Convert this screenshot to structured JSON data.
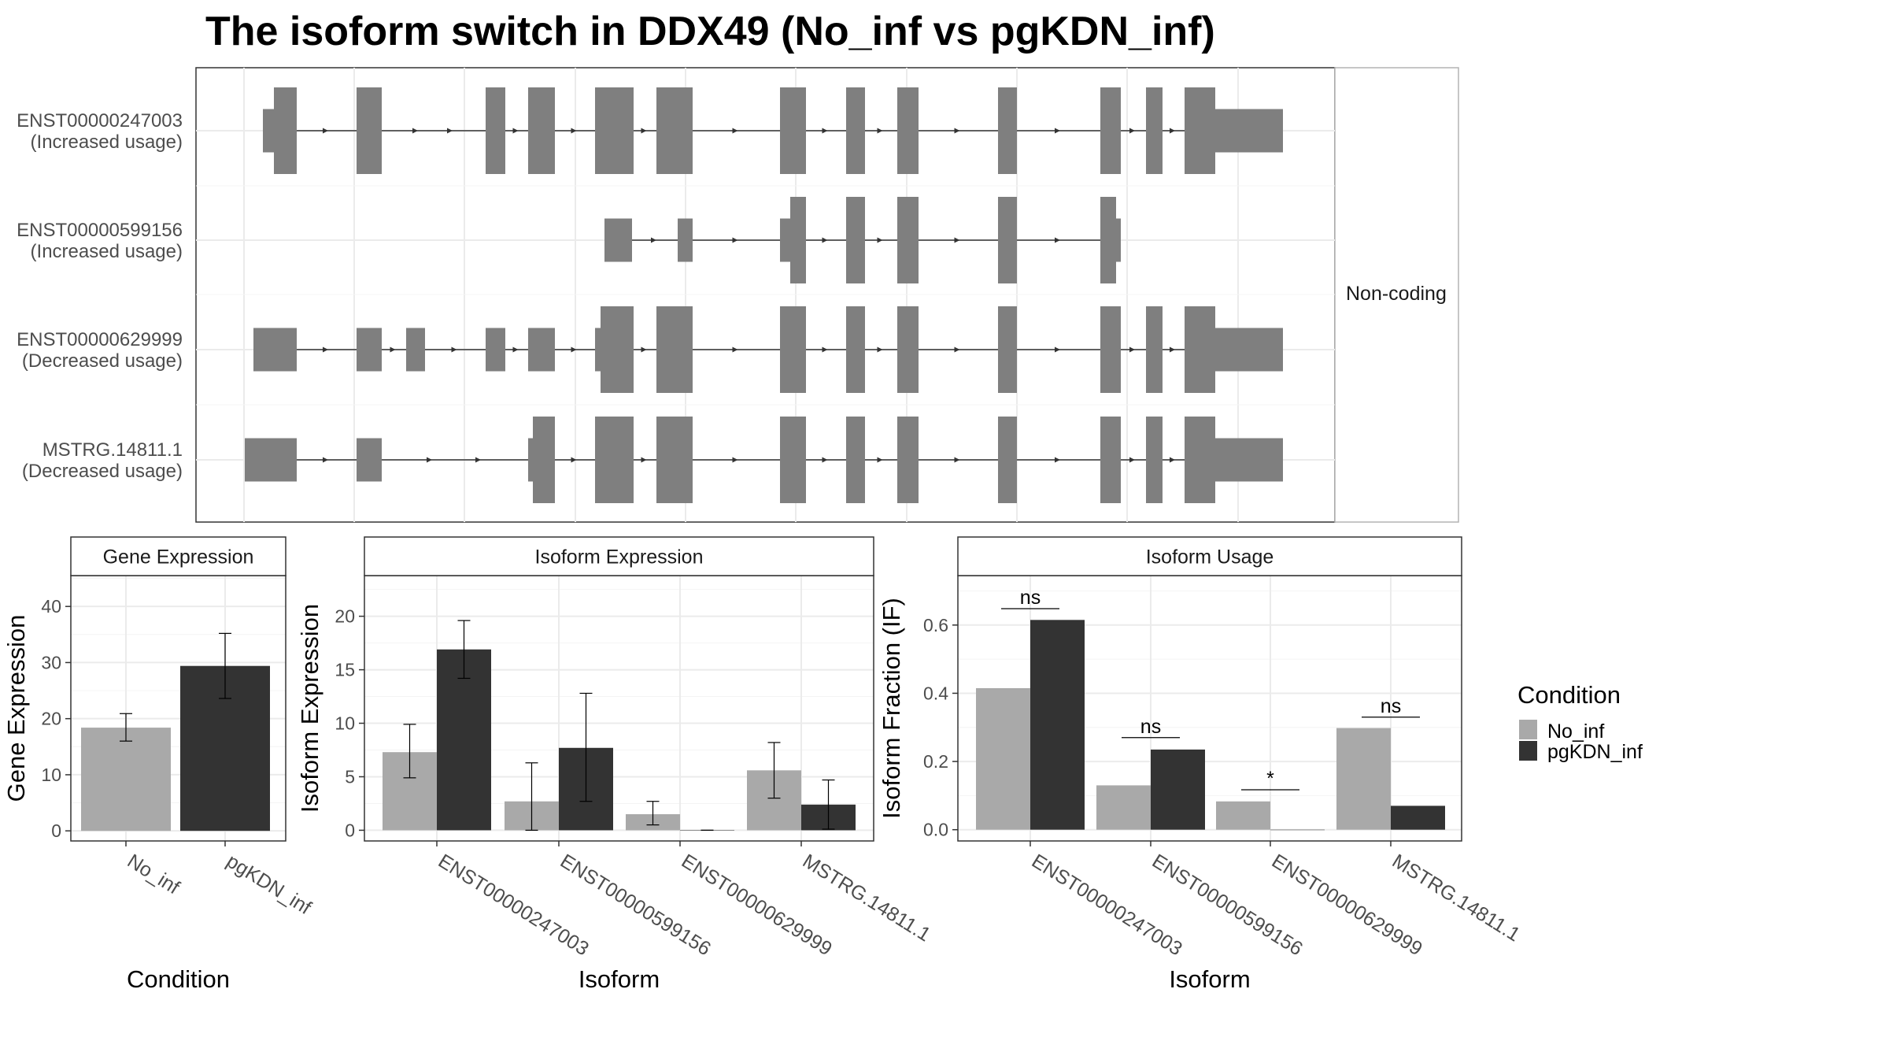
{
  "title": "The isoform switch in DDX49 (No_inf vs pgKDN_inf)",
  "structure_panel": {
    "strip_label": "Non-coding",
    "gap_labels": {
      "fill": "#7f7f7f"
    },
    "rows": [
      {
        "id": "ENST00000247003",
        "note": "(Increased usage)",
        "span": [
          334,
          1630
        ],
        "exons": [
          {
            "start": 334,
            "end": 348,
            "kind": "utr"
          },
          {
            "start": 348,
            "end": 377,
            "kind": "cds"
          },
          {
            "start": 453,
            "end": 485,
            "kind": "cds"
          },
          {
            "start": 617,
            "end": 642,
            "kind": "cds"
          },
          {
            "start": 671,
            "end": 705,
            "kind": "cds"
          },
          {
            "start": 756,
            "end": 805,
            "kind": "cds"
          },
          {
            "start": 834,
            "end": 880,
            "kind": "cds"
          },
          {
            "start": 991,
            "end": 1024,
            "kind": "cds"
          },
          {
            "start": 1075,
            "end": 1099,
            "kind": "cds"
          },
          {
            "start": 1140,
            "end": 1167,
            "kind": "cds"
          },
          {
            "start": 1268,
            "end": 1292,
            "kind": "cds"
          },
          {
            "start": 1398,
            "end": 1424,
            "kind": "cds"
          },
          {
            "start": 1456,
            "end": 1477,
            "kind": "cds"
          },
          {
            "start": 1505,
            "end": 1544,
            "kind": "cds"
          },
          {
            "start": 1544,
            "end": 1630,
            "kind": "utr"
          }
        ]
      },
      {
        "id": "ENST00000599156",
        "note": "(Increased usage)",
        "span": [
          768,
          1424
        ],
        "exons": [
          {
            "start": 768,
            "end": 803,
            "kind": "utr"
          },
          {
            "start": 861,
            "end": 880,
            "kind": "utr"
          },
          {
            "start": 991,
            "end": 1004,
            "kind": "utr"
          },
          {
            "start": 1004,
            "end": 1024,
            "kind": "cds"
          },
          {
            "start": 1075,
            "end": 1099,
            "kind": "cds"
          },
          {
            "start": 1140,
            "end": 1167,
            "kind": "cds"
          },
          {
            "start": 1268,
            "end": 1292,
            "kind": "cds"
          },
          {
            "start": 1398,
            "end": 1418,
            "kind": "cds"
          },
          {
            "start": 1418,
            "end": 1424,
            "kind": "utr"
          }
        ]
      },
      {
        "id": "ENST00000629999",
        "note": "(Decreased usage)",
        "span": [
          322,
          1630
        ],
        "exons": [
          {
            "start": 322,
            "end": 377,
            "kind": "utr"
          },
          {
            "start": 453,
            "end": 485,
            "kind": "utr"
          },
          {
            "start": 516,
            "end": 540,
            "kind": "utr"
          },
          {
            "start": 617,
            "end": 642,
            "kind": "utr"
          },
          {
            "start": 671,
            "end": 705,
            "kind": "utr"
          },
          {
            "start": 756,
            "end": 763,
            "kind": "utr"
          },
          {
            "start": 763,
            "end": 805,
            "kind": "cds"
          },
          {
            "start": 834,
            "end": 880,
            "kind": "cds"
          },
          {
            "start": 991,
            "end": 1024,
            "kind": "cds"
          },
          {
            "start": 1075,
            "end": 1099,
            "kind": "cds"
          },
          {
            "start": 1140,
            "end": 1167,
            "kind": "cds"
          },
          {
            "start": 1268,
            "end": 1292,
            "kind": "cds"
          },
          {
            "start": 1398,
            "end": 1424,
            "kind": "cds"
          },
          {
            "start": 1456,
            "end": 1477,
            "kind": "cds"
          },
          {
            "start": 1505,
            "end": 1544,
            "kind": "cds"
          },
          {
            "start": 1544,
            "end": 1630,
            "kind": "utr"
          }
        ]
      },
      {
        "id": "MSTRG.14811.1",
        "note": "(Decreased usage)",
        "span": [
          311,
          1630
        ],
        "exons": [
          {
            "start": 311,
            "end": 377,
            "kind": "utr"
          },
          {
            "start": 453,
            "end": 485,
            "kind": "utr"
          },
          {
            "start": 671,
            "end": 677,
            "kind": "utr"
          },
          {
            "start": 677,
            "end": 705,
            "kind": "cds"
          },
          {
            "start": 756,
            "end": 805,
            "kind": "cds"
          },
          {
            "start": 834,
            "end": 880,
            "kind": "cds"
          },
          {
            "start": 991,
            "end": 1024,
            "kind": "cds"
          },
          {
            "start": 1075,
            "end": 1099,
            "kind": "cds"
          },
          {
            "start": 1140,
            "end": 1167,
            "kind": "cds"
          },
          {
            "start": 1268,
            "end": 1292,
            "kind": "cds"
          },
          {
            "start": 1398,
            "end": 1424,
            "kind": "cds"
          },
          {
            "start": 1456,
            "end": 1477,
            "kind": "cds"
          },
          {
            "start": 1505,
            "end": 1544,
            "kind": "cds"
          },
          {
            "start": 1544,
            "end": 1630,
            "kind": "utr"
          }
        ]
      }
    ]
  },
  "chart_data": [
    {
      "type": "bar",
      "title": "Gene Expression",
      "xlabel": "Condition",
      "ylabel": "Gene Expression",
      "categories": [
        "No_inf",
        "pgKDN_inf"
      ],
      "values": [
        18.4,
        29.4
      ],
      "error_low": [
        16.0,
        23.6
      ],
      "error_high": [
        20.9,
        35.2
      ],
      "ylim": [
        -1.8,
        45.5
      ],
      "yticks": [
        0,
        10,
        20,
        30,
        40
      ],
      "colors": [
        "#a9a9a9",
        "#333333"
      ]
    },
    {
      "type": "bar",
      "title": "Isoform Expression",
      "xlabel": "Isoform",
      "ylabel": "Isoform Expression",
      "categories": [
        "ENST00000247003",
        "ENST00000599156",
        "ENST00000629999",
        "MSTRG.14811.1"
      ],
      "series": [
        {
          "name": "No_inf",
          "values": [
            7.3,
            2.7,
            1.5,
            5.6
          ],
          "error_low": [
            4.9,
            0.0,
            0.5,
            3.0
          ],
          "error_high": [
            9.9,
            6.3,
            2.7,
            8.2
          ],
          "color": "#a9a9a9"
        },
        {
          "name": "pgKDN_inf",
          "values": [
            16.9,
            7.7,
            0.0,
            2.4
          ],
          "error_low": [
            14.2,
            2.7,
            0.0,
            0.1
          ],
          "error_high": [
            19.6,
            12.8,
            0.0,
            4.7
          ],
          "color": "#333333"
        }
      ],
      "ylim": [
        -1.0,
        23.8
      ],
      "yticks": [
        0,
        5,
        10,
        15,
        20
      ]
    },
    {
      "type": "bar",
      "title": "Isoform Usage",
      "xlabel": "Isoform",
      "ylabel": "Isoform Fraction (IF)",
      "categories": [
        "ENST00000247003",
        "ENST00000599156",
        "ENST00000629999",
        "MSTRG.14811.1"
      ],
      "series": [
        {
          "name": "No_inf",
          "values": [
            0.415,
            0.13,
            0.083,
            0.298
          ],
          "color": "#a9a9a9"
        },
        {
          "name": "pgKDN_inf",
          "values": [
            0.615,
            0.235,
            0.0,
            0.07
          ],
          "color": "#333333"
        }
      ],
      "significance": [
        {
          "label": "ns",
          "level": 0.648
        },
        {
          "label": "ns",
          "level": 0.27
        },
        {
          "label": "*",
          "level": 0.117
        },
        {
          "label": "ns",
          "level": 0.33
        }
      ],
      "ylim": [
        -0.033,
        0.745
      ],
      "yticks": [
        0.0,
        0.2,
        0.4,
        0.6
      ],
      "ytick_labels": [
        "0.0",
        "0.2",
        "0.4",
        "0.6"
      ]
    }
  ],
  "legend": {
    "title": "Condition",
    "entries": [
      {
        "label": "No_inf",
        "color": "#a9a9a9"
      },
      {
        "label": "pgKDN_inf",
        "color": "#333333"
      }
    ]
  }
}
